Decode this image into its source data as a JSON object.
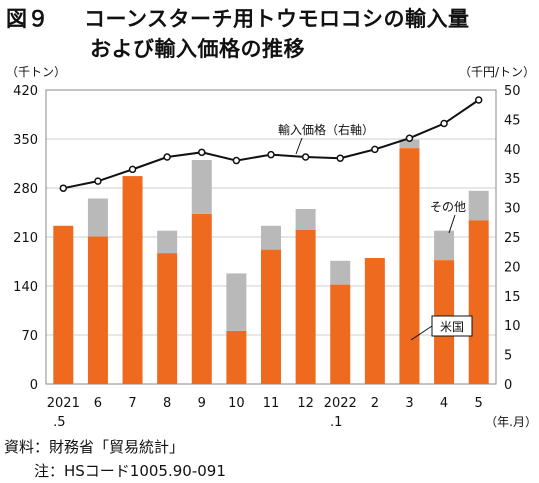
{
  "title_line1_num": "図９",
  "title_line1": "コーンスターチ用トウモロコシの輸入量",
  "title_line2": "および輸入価格の推移",
  "source_note": "資料：財務省「貿易統計」",
  "note": "注：HSコード1005.90-091",
  "chart_data": {
    "type": "bar",
    "stacked": true,
    "categories": [
      "2021\n.5",
      "6",
      "7",
      "8",
      "9",
      "10",
      "11",
      "12",
      "2022\n.1",
      "2",
      "3",
      "4",
      "5"
    ],
    "series": [
      {
        "name": "米国",
        "color": "#ee6a1f",
        "values": [
          226,
          211,
          297,
          187,
          243,
          76,
          192,
          220,
          142,
          180,
          337,
          177,
          234
        ]
      },
      {
        "name": "その他",
        "color": "#b9b9b9",
        "values": [
          0,
          54,
          0,
          32,
          77,
          82,
          34,
          30,
          34,
          0,
          12,
          42,
          42
        ]
      }
    ],
    "line_series": {
      "name": "輸入価格（右軸）",
      "values": [
        33.3,
        34.5,
        36.5,
        38.6,
        39.4,
        38.0,
        39.0,
        38.6,
        38.4,
        39.9,
        41.8,
        44.3,
        48.3
      ]
    },
    "y_left": {
      "unit": "（千トン）",
      "ylim": [
        0,
        420
      ],
      "ticks": [
        0,
        70,
        140,
        210,
        280,
        350,
        420
      ]
    },
    "y_right": {
      "unit": "（千円/トン）",
      "ylim": [
        0,
        50
      ],
      "ticks": [
        0,
        5,
        10,
        15,
        20,
        25,
        30,
        35,
        40,
        45,
        50
      ]
    },
    "x_unit": "（年.月）",
    "annotations": {
      "price": "輸入価格（右軸）",
      "other": "その他",
      "us": "米国"
    },
    "grid": true
  }
}
